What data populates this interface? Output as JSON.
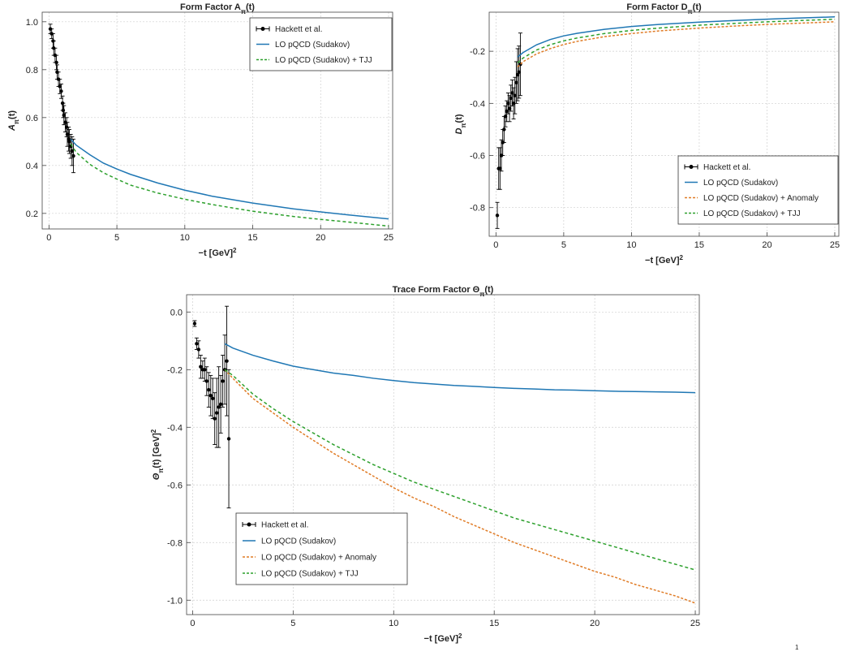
{
  "chart_data": [
    {
      "id": "chart-a",
      "type": "line",
      "title": "Form Factor A",
      "title_sub": "π",
      "title_tail": "(t)",
      "xlabel": "−t [GeV]",
      "xlabel_sup": "2",
      "ylabel": "A",
      "ylabel_sub": "π",
      "ylabel_tail": "(t)",
      "xlim": [
        -0.5,
        25.3
      ],
      "ylim": [
        0.135,
        1.04
      ],
      "xticks": [
        0,
        5,
        10,
        15,
        20,
        25
      ],
      "yticks": [
        0.2,
        0.4,
        0.6,
        0.8,
        1.0
      ],
      "ytick_labels": [
        "0.2",
        "0.4",
        "0.6",
        "0.8",
        "1.0"
      ],
      "grid": true,
      "legend_position": "top-right",
      "legend": [
        {
          "label": "Hackett et al.",
          "style": "errorbar",
          "color": "#000000"
        },
        {
          "label": "LO pQCD (Sudakov)",
          "style": "solid",
          "color": "#1f77b4"
        },
        {
          "label": "LO pQCD (Sudakov) + TJJ",
          "style": "dashed",
          "color": "#2ca02c"
        }
      ],
      "series": [
        {
          "name": "Hackett et al.",
          "kind": "errorbar",
          "color": "#000000",
          "x": [
            0.1,
            0.2,
            0.3,
            0.35,
            0.45,
            0.55,
            0.6,
            0.7,
            0.8,
            0.9,
            1.0,
            1.05,
            1.1,
            1.2,
            1.3,
            1.35,
            1.45,
            1.5,
            1.6,
            1.7,
            1.8
          ],
          "y": [
            0.97,
            0.95,
            0.92,
            0.89,
            0.86,
            0.83,
            0.79,
            0.76,
            0.73,
            0.71,
            0.66,
            0.63,
            0.61,
            0.58,
            0.56,
            0.53,
            0.51,
            0.5,
            0.48,
            0.46,
            0.44
          ],
          "err": [
            0.02,
            0.02,
            0.03,
            0.03,
            0.03,
            0.03,
            0.03,
            0.03,
            0.03,
            0.03,
            0.03,
            0.03,
            0.04,
            0.04,
            0.04,
            0.05,
            0.05,
            0.05,
            0.05,
            0.06,
            0.07
          ]
        },
        {
          "name": "LO pQCD (Sudakov)",
          "kind": "line",
          "color": "#1f77b4",
          "dash": "",
          "x": [
            1.6,
            2,
            3,
            4,
            5,
            6,
            8,
            10,
            12,
            15,
            18,
            20,
            22,
            25
          ],
          "y": [
            0.51,
            0.485,
            0.445,
            0.41,
            0.385,
            0.363,
            0.327,
            0.297,
            0.272,
            0.243,
            0.219,
            0.206,
            0.194,
            0.177
          ]
        },
        {
          "name": "LO pQCD (Sudakov) + TJJ",
          "kind": "line",
          "color": "#2ca02c",
          "dash": "4 3",
          "x": [
            1.6,
            2,
            3,
            4,
            5,
            6,
            8,
            10,
            12,
            15,
            18,
            20,
            22,
            25
          ],
          "y": [
            0.49,
            0.455,
            0.405,
            0.37,
            0.343,
            0.318,
            0.285,
            0.259,
            0.237,
            0.209,
            0.187,
            0.175,
            0.164,
            0.147
          ]
        }
      ]
    },
    {
      "id": "chart-d",
      "type": "line",
      "title": "Form Factor D",
      "title_sub": "π",
      "title_tail": "(t)",
      "xlabel": "−t [GeV]",
      "xlabel_sup": "2",
      "ylabel": "D",
      "ylabel_sub": "π",
      "ylabel_tail": "(t)",
      "xlim": [
        -0.5,
        25.3
      ],
      "ylim": [
        -0.91,
        -0.05
      ],
      "xticks": [
        0,
        5,
        10,
        15,
        20,
        25
      ],
      "yticks": [
        -0.8,
        -0.6,
        -0.4,
        -0.2
      ],
      "ytick_labels": [
        "-0.8",
        "-0.6",
        "-0.4",
        "-0.2"
      ],
      "grid": true,
      "legend_position": "bottom-right",
      "legend": [
        {
          "label": "Hackett et al.",
          "style": "errorbar",
          "color": "#000000"
        },
        {
          "label": "LO pQCD (Sudakov)",
          "style": "solid",
          "color": "#1f77b4"
        },
        {
          "label": "LO pQCD (Sudakov) + Anomaly",
          "style": "dashed",
          "color": "#e07b25"
        },
        {
          "label": "LO pQCD (Sudakov) + TJJ",
          "style": "dashed",
          "color": "#2ca02c"
        }
      ],
      "series": [
        {
          "name": "Hackett et al.",
          "kind": "errorbar",
          "color": "#000000",
          "x": [
            0.1,
            0.2,
            0.3,
            0.4,
            0.5,
            0.6,
            0.7,
            0.8,
            0.9,
            1.0,
            1.1,
            1.2,
            1.3,
            1.4,
            1.5,
            1.6,
            1.7,
            1.8
          ],
          "y": [
            -0.83,
            -0.65,
            -0.65,
            -0.6,
            -0.55,
            -0.5,
            -0.45,
            -0.43,
            -0.4,
            -0.42,
            -0.38,
            -0.36,
            -0.4,
            -0.37,
            -0.32,
            -0.29,
            -0.28,
            -0.25
          ],
          "err": [
            0.05,
            0.08,
            0.08,
            0.06,
            0.05,
            0.05,
            0.04,
            0.04,
            0.04,
            0.05,
            0.05,
            0.05,
            0.06,
            0.07,
            0.08,
            0.1,
            0.1,
            0.12
          ]
        },
        {
          "name": "LO pQCD (Sudakov)",
          "kind": "line",
          "color": "#1f77b4",
          "dash": "",
          "x": [
            1.6,
            2,
            3,
            4,
            5,
            6,
            8,
            10,
            12,
            15,
            18,
            20,
            22,
            25
          ],
          "y": [
            -0.222,
            -0.205,
            -0.175,
            -0.155,
            -0.141,
            -0.131,
            -0.116,
            -0.105,
            -0.097,
            -0.088,
            -0.081,
            -0.077,
            -0.073,
            -0.068
          ]
        },
        {
          "name": "LO pQCD (Sudakov) + Anomaly",
          "kind": "line",
          "color": "#e07b25",
          "dash": "3 2",
          "x": [
            1.6,
            2,
            3,
            4,
            5,
            6,
            8,
            10,
            12,
            15,
            18,
            20,
            22,
            25
          ],
          "y": [
            -0.26,
            -0.24,
            -0.21,
            -0.19,
            -0.174,
            -0.162,
            -0.144,
            -0.132,
            -0.122,
            -0.111,
            -0.102,
            -0.097,
            -0.093,
            -0.087
          ]
        },
        {
          "name": "LO pQCD (Sudakov) + TJJ",
          "kind": "line",
          "color": "#2ca02c",
          "dash": "4 3",
          "x": [
            1.6,
            2,
            3,
            4,
            5,
            6,
            8,
            10,
            12,
            15,
            18,
            20,
            22,
            25
          ],
          "y": [
            -0.245,
            -0.226,
            -0.195,
            -0.175,
            -0.16,
            -0.149,
            -0.132,
            -0.12,
            -0.111,
            -0.1,
            -0.092,
            -0.087,
            -0.083,
            -0.077
          ]
        }
      ]
    },
    {
      "id": "chart-theta",
      "type": "line",
      "title": "Trace Form Factor Θ",
      "title_sub": "π",
      "title_tail": "(t)",
      "xlabel": "−t [GeV]",
      "xlabel_sup": "2",
      "ylabel": "Θ",
      "ylabel_sub": "π",
      "ylabel_tail": "(t)  [GeV]",
      "ylabel_sup": "2",
      "xlim": [
        -0.3,
        25.2
      ],
      "ylim": [
        -1.05,
        0.06
      ],
      "xticks": [
        0,
        5,
        10,
        15,
        20,
        25
      ],
      "yticks": [
        -1.0,
        -0.8,
        -0.6,
        -0.4,
        -0.2,
        0.0
      ],
      "ytick_labels": [
        "-1.0",
        "-0.8",
        "-0.6",
        "-0.4",
        "-0.2",
        "0.0"
      ],
      "grid": true,
      "legend_position": "bottom-left",
      "legend": [
        {
          "label": "Hackett et al.",
          "style": "errorbar",
          "color": "#000000"
        },
        {
          "label": "LO pQCD (Sudakov)",
          "style": "solid",
          "color": "#1f77b4"
        },
        {
          "label": "LO pQCD (Sudakov) + Anomaly",
          "style": "dashed",
          "color": "#e07b25"
        },
        {
          "label": "LO pQCD (Sudakov) + TJJ",
          "style": "dashed",
          "color": "#2ca02c"
        }
      ],
      "series": [
        {
          "name": "Hackett et al.",
          "kind": "errorbar",
          "color": "#000000",
          "x": [
            0.1,
            0.2,
            0.3,
            0.4,
            0.5,
            0.6,
            0.7,
            0.8,
            0.9,
            1.0,
            1.1,
            1.2,
            1.3,
            1.4,
            1.5,
            1.6,
            1.7,
            1.8
          ],
          "y": [
            -0.04,
            -0.11,
            -0.13,
            -0.19,
            -0.2,
            -0.2,
            -0.24,
            -0.27,
            -0.29,
            -0.3,
            -0.37,
            -0.35,
            -0.33,
            -0.32,
            -0.24,
            -0.2,
            -0.17,
            -0.44
          ],
          "err": [
            0.01,
            0.02,
            0.03,
            0.04,
            0.03,
            0.04,
            0.05,
            0.06,
            0.07,
            0.07,
            0.09,
            0.12,
            0.14,
            0.1,
            0.09,
            0.12,
            0.19,
            0.24
          ]
        },
        {
          "name": "LO pQCD (Sudakov)",
          "kind": "line",
          "color": "#1f77b4",
          "dash": "",
          "x": [
            1.6,
            2,
            3,
            4,
            5,
            6,
            7,
            8,
            9,
            10,
            11,
            12,
            13,
            14,
            15,
            16,
            17,
            18,
            19,
            20,
            21,
            22,
            23,
            24,
            25
          ],
          "y": [
            -0.11,
            -0.125,
            -0.15,
            -0.17,
            -0.188,
            -0.2,
            -0.212,
            -0.22,
            -0.23,
            -0.238,
            -0.245,
            -0.25,
            -0.255,
            -0.258,
            -0.262,
            -0.265,
            -0.267,
            -0.27,
            -0.271,
            -0.273,
            -0.275,
            -0.276,
            -0.277,
            -0.278,
            -0.28
          ]
        },
        {
          "name": "LO pQCD (Sudakov) + Anomaly",
          "kind": "line",
          "color": "#e07b25",
          "dash": "3 2",
          "x": [
            1.6,
            2,
            3,
            4,
            5,
            6,
            7,
            8,
            9,
            10,
            11,
            12,
            13,
            14,
            15,
            16,
            17,
            18,
            19,
            20,
            21,
            22,
            23,
            24,
            25
          ],
          "y": [
            -0.2,
            -0.23,
            -0.3,
            -0.35,
            -0.4,
            -0.445,
            -0.49,
            -0.53,
            -0.57,
            -0.61,
            -0.645,
            -0.675,
            -0.71,
            -0.74,
            -0.77,
            -0.8,
            -0.825,
            -0.85,
            -0.875,
            -0.9,
            -0.92,
            -0.945,
            -0.965,
            -0.985,
            -1.01
          ]
        },
        {
          "name": "LO pQCD (Sudakov) + TJJ",
          "kind": "line",
          "color": "#2ca02c",
          "dash": "4 3",
          "x": [
            1.6,
            2,
            3,
            4,
            5,
            6,
            7,
            8,
            9,
            10,
            11,
            12,
            13,
            14,
            15,
            16,
            17,
            18,
            19,
            20,
            21,
            22,
            23,
            24,
            25
          ],
          "y": [
            -0.2,
            -0.22,
            -0.285,
            -0.335,
            -0.38,
            -0.42,
            -0.46,
            -0.495,
            -0.53,
            -0.56,
            -0.59,
            -0.615,
            -0.64,
            -0.665,
            -0.69,
            -0.715,
            -0.735,
            -0.755,
            -0.775,
            -0.795,
            -0.815,
            -0.835,
            -0.855,
            -0.875,
            -0.895
          ]
        }
      ]
    }
  ],
  "page": {
    "footnote": "1"
  }
}
